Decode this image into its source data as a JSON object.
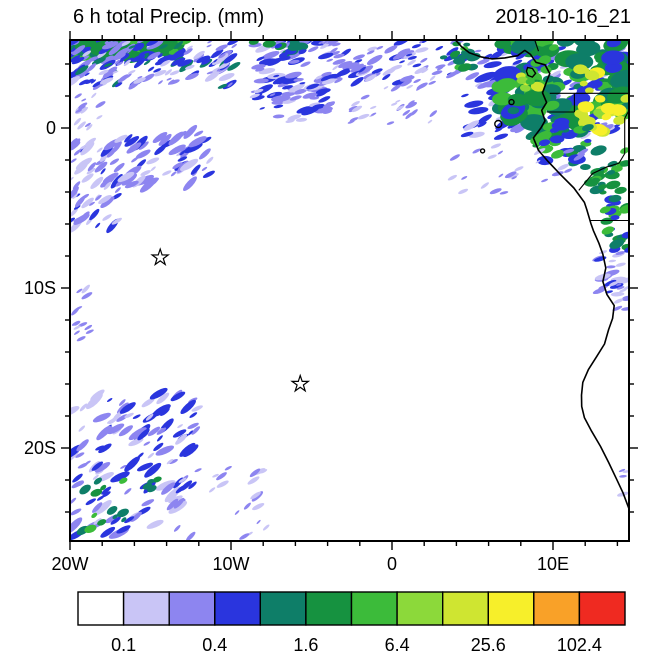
{
  "title": "6 h total Precip. (mm)",
  "datetime": "2018-10-16_21",
  "chart_data": {
    "type": "heatmap",
    "title": "6 h total Precip. (mm)",
    "timestamp": "2018-10-16_21",
    "units": "mm",
    "projection": "lat-lon",
    "lon_range": [
      -20,
      14.72
    ],
    "lat_range": [
      -25.81,
      5.5
    ],
    "x_ticks": [
      {
        "value": -20,
        "label": "20W"
      },
      {
        "value": -10,
        "label": "10W"
      },
      {
        "value": 0,
        "label": "0"
      },
      {
        "value": 10,
        "label": "10E"
      }
    ],
    "y_ticks": [
      {
        "value": 0,
        "label": "0"
      },
      {
        "value": -10,
        "label": "10S"
      },
      {
        "value": -20,
        "label": "20S"
      }
    ],
    "minor_tick_step_deg": 2,
    "colorbar": {
      "levels": [
        0.1,
        0.2,
        0.4,
        0.8,
        1.6,
        3.2,
        6.4,
        12.8,
        25.6,
        51.2,
        102.4
      ],
      "colors": [
        "#FFFFFF",
        "#C9C5F6",
        "#8D85F0",
        "#2A35DE",
        "#0E7E68",
        "#169240",
        "#3CBB3A",
        "#8CD93A",
        "#CFE531",
        "#F7EF2A",
        "#F9A128",
        "#EF2A21"
      ],
      "labeled_values": [
        "0.1",
        "0.4",
        "1.6",
        "6.4",
        "25.6",
        "102.4"
      ],
      "labeled_boundary_indices": [
        1,
        3,
        5,
        7,
        9,
        11
      ]
    },
    "markers": [
      {
        "shape": "star",
        "lon": -14.4,
        "lat": -8.1
      },
      {
        "shape": "star",
        "lon": -5.7,
        "lat": -16.0
      }
    ],
    "precip_regions": [
      {
        "name": "topleft-green-band",
        "lon": [
          -20,
          -12.3
        ],
        "lat": [
          4.5,
          5.5
        ],
        "n": 55,
        "r": [
          2.5,
          7
        ],
        "colors": [
          4,
          5,
          6,
          5,
          3
        ],
        "angle": -15,
        "seed": 11,
        "aspect": [
          1.8,
          1.0
        ]
      },
      {
        "name": "topleft-blue-speckle",
        "lon": [
          -20,
          -9.8
        ],
        "lat": [
          2.6,
          5.5
        ],
        "n": 150,
        "r": [
          1.2,
          4.2
        ],
        "colors": [
          1,
          2,
          3,
          2,
          3,
          4
        ],
        "angle": -30,
        "seed": 12
      },
      {
        "name": "left-edge-streaks-upper",
        "lon": [
          -20,
          -17
        ],
        "lat": [
          -6.3,
          -0.8
        ],
        "n": 60,
        "r": [
          1.3,
          4.5
        ],
        "colors": [
          1,
          2,
          3,
          2
        ],
        "angle": -40,
        "seed": 13
      },
      {
        "name": "left-edge-sparse",
        "lon": [
          -20,
          -18
        ],
        "lat": [
          0,
          2.6
        ],
        "n": 16,
        "r": [
          1.2,
          3
        ],
        "colors": [
          1,
          2
        ],
        "angle": -35,
        "seed": 14
      },
      {
        "name": "west-cluster",
        "lon": [
          -17,
          -11
        ],
        "lat": [
          -3.6,
          -0.2
        ],
        "n": 60,
        "r": [
          1.4,
          4.8
        ],
        "colors": [
          2,
          3,
          1,
          2
        ],
        "angle": -35,
        "seed": 15
      },
      {
        "name": "midtop-streaks",
        "lon": [
          -8.6,
          -3.6
        ],
        "lat": [
          0.4,
          5.5
        ],
        "n": 90,
        "r": [
          1.3,
          4.6
        ],
        "colors": [
          2,
          3,
          1,
          2,
          3
        ],
        "angle": -15,
        "seed": 16
      },
      {
        "name": "midtop-teal",
        "lon": [
          -8.8,
          -5.4
        ],
        "lat": [
          4.5,
          5.5
        ],
        "n": 16,
        "r": [
          2,
          4.5
        ],
        "colors": [
          4,
          5,
          3
        ],
        "angle": -10,
        "seed": 17,
        "aspect": [
          1.8,
          1.0
        ]
      },
      {
        "name": "top-center",
        "lon": [
          -4.2,
          1.2
        ],
        "lat": [
          2.8,
          5.5
        ],
        "n": 60,
        "r": [
          1.3,
          4.2
        ],
        "colors": [
          2,
          3,
          1,
          2
        ],
        "angle": -25,
        "seed": 18
      },
      {
        "name": "center-sparse",
        "lon": [
          -2.6,
          0.3
        ],
        "lat": [
          0.3,
          2.8
        ],
        "n": 14,
        "r": [
          1.2,
          3
        ],
        "colors": [
          1,
          2
        ],
        "angle": -30,
        "seed": 19
      },
      {
        "name": "top-east-sparse",
        "lon": [
          1.2,
          4.6
        ],
        "lat": [
          3.2,
          5.5
        ],
        "n": 26,
        "r": [
          1.2,
          3.4
        ],
        "colors": [
          2,
          1,
          3
        ],
        "angle": -25,
        "seed": 20
      },
      {
        "name": "east-sparse-low",
        "lon": [
          0,
          2.8
        ],
        "lat": [
          0.3,
          3.2
        ],
        "n": 18,
        "r": [
          1.2,
          3
        ],
        "colors": [
          1,
          2,
          2
        ],
        "angle": -30,
        "seed": 21
      },
      {
        "name": "ghana-green",
        "lon": [
          3.2,
          5.2
        ],
        "lat": [
          3.6,
          5.5
        ],
        "n": 14,
        "r": [
          1.8,
          4
        ],
        "colors": [
          5,
          6,
          4
        ],
        "angle": -10,
        "seed": 38,
        "aspect": [
          1.8,
          1.0
        ]
      },
      {
        "name": "gulf-blue-base",
        "lon": [
          4.5,
          14.72
        ],
        "lat": [
          -0.6,
          5.5
        ],
        "n": 100,
        "r": [
          1.6,
          5.5
        ],
        "colors": [
          2,
          3,
          1,
          3
        ],
        "angle": -20,
        "seed": 22
      },
      {
        "name": "gulf-greens",
        "lon": [
          6.8,
          14.72
        ],
        "lat": [
          0.2,
          5.5
        ],
        "n": 120,
        "r": [
          2.6,
          8
        ],
        "colors": [
          4,
          5,
          6,
          5,
          6,
          3
        ],
        "angle": -10,
        "seed": 23,
        "aspect": [
          1.8,
          1.1
        ]
      },
      {
        "name": "gulf-yellow-cores",
        "lon": [
          11.6,
          14.72
        ],
        "lat": [
          -0.5,
          3.7
        ],
        "n": 26,
        "r": [
          2,
          5.5
        ],
        "colors": [
          7,
          8,
          9,
          8
        ],
        "angle": 0,
        "seed": 24,
        "aspect": [
          1.6,
          1.1
        ]
      },
      {
        "name": "bioko-yellowgreen",
        "lon": [
          7.8,
          9.7
        ],
        "lat": [
          2.4,
          4.4
        ],
        "n": 10,
        "r": [
          2,
          4.5
        ],
        "colors": [
          7,
          8,
          6
        ],
        "angle": 0,
        "seed": 25,
        "aspect": [
          1.6,
          1.1
        ]
      },
      {
        "name": "gabon-coast-green",
        "lon": [
          8.6,
          12.2
        ],
        "lat": [
          -2.2,
          0.4
        ],
        "n": 34,
        "r": [
          2,
          5
        ],
        "colors": [
          5,
          6,
          4,
          3
        ],
        "angle": -10,
        "seed": 26,
        "aspect": [
          1.8,
          1.0
        ]
      },
      {
        "name": "congo-coast-green",
        "lon": [
          12.0,
          14.72
        ],
        "lat": [
          -4.1,
          -1.3
        ],
        "n": 24,
        "r": [
          2,
          4.8
        ],
        "colors": [
          5,
          6,
          4
        ],
        "angle": -10,
        "seed": 27,
        "aspect": [
          1.8,
          1.0
        ]
      },
      {
        "name": "angola-coast-green",
        "lon": [
          13.2,
          14.72
        ],
        "lat": [
          -7.8,
          -4.4
        ],
        "n": 24,
        "r": [
          1.8,
          4.4
        ],
        "colors": [
          5,
          4,
          6,
          3
        ],
        "angle": -10,
        "seed": 28,
        "aspect": [
          1.8,
          1.0
        ]
      },
      {
        "name": "angola-coast-blue",
        "lon": [
          12.7,
          14.72
        ],
        "lat": [
          -10.4,
          -7.4
        ],
        "n": 24,
        "r": [
          1.6,
          4
        ],
        "colors": [
          2,
          3,
          1
        ],
        "angle": -15,
        "seed": 29
      },
      {
        "name": "right-edge-specks",
        "lon": [
          13.8,
          14.72
        ],
        "lat": [
          -12.6,
          -9.6
        ],
        "n": 8,
        "r": [
          1.2,
          2.6
        ],
        "colors": [
          1,
          2
        ],
        "angle": -15,
        "seed": 30
      },
      {
        "name": "offshore-specks",
        "lon": [
          3.5,
          12
        ],
        "lat": [
          -4.2,
          -0.9
        ],
        "n": 26,
        "r": [
          1.2,
          3
        ],
        "colors": [
          1,
          2
        ],
        "angle": -25,
        "seed": 31
      },
      {
        "name": "left-edge-mid-specks",
        "lon": [
          -20,
          -18.5
        ],
        "lat": [
          -13.2,
          -9.4
        ],
        "n": 13,
        "r": [
          1.2,
          3
        ],
        "colors": [
          1,
          2
        ],
        "angle": -35,
        "seed": 32
      },
      {
        "name": "southwest-cluster",
        "lon": [
          -20,
          -12
        ],
        "lat": [
          -25.6,
          -16.6
        ],
        "n": 130,
        "r": [
          1.4,
          5
        ],
        "colors": [
          1,
          2,
          3,
          2,
          1,
          3
        ],
        "angle": -35,
        "seed": 33
      },
      {
        "name": "southwest-greens",
        "lon": [
          -20,
          -16.6
        ],
        "lat": [
          -25.6,
          -21.8
        ],
        "n": 13,
        "r": [
          1.8,
          4
        ],
        "colors": [
          4,
          5,
          6
        ],
        "angle": -30,
        "seed": 34,
        "aspect": [
          1.7,
          1.0
        ]
      },
      {
        "name": "south-green-spot",
        "lon": [
          -15.2,
          -14.2
        ],
        "lat": [
          -23,
          -21.8
        ],
        "n": 4,
        "r": [
          1.8,
          3.4
        ],
        "colors": [
          5,
          4
        ],
        "angle": -20,
        "seed": 35,
        "aspect": [
          1.7,
          1.0
        ]
      },
      {
        "name": "south-center-specks",
        "lon": [
          -11.6,
          -7.8
        ],
        "lat": [
          -25.6,
          -21.2
        ],
        "n": 18,
        "r": [
          1.2,
          3.4
        ],
        "colors": [
          1,
          2,
          2
        ],
        "angle": -35,
        "seed": 36
      },
      {
        "name": "se-coast-lavender",
        "lon": [
          13.9,
          14.65
        ],
        "lat": [
          -23.2,
          -21.4
        ],
        "n": 4,
        "r": [
          1.5,
          2.8
        ],
        "colors": [
          1,
          1,
          2
        ],
        "angle": -15,
        "seed": 37
      }
    ]
  },
  "map": {
    "coastline": [
      [
        3.9,
        5.55
      ],
      [
        4.3,
        5.1
      ],
      [
        4.8,
        4.7
      ],
      [
        5.5,
        4.45
      ],
      [
        6.2,
        4.32
      ],
      [
        7.0,
        4.38
      ],
      [
        7.8,
        4.52
      ],
      [
        8.25,
        4.85
      ],
      [
        8.6,
        4.6
      ],
      [
        8.95,
        4.1
      ],
      [
        9.5,
        3.95
      ],
      [
        9.8,
        3.4
      ],
      [
        9.6,
        2.9
      ],
      [
        9.35,
        2.2
      ],
      [
        9.6,
        1.6
      ],
      [
        9.3,
        1.1
      ],
      [
        9.5,
        0.45
      ],
      [
        9.25,
        0.0
      ],
      [
        8.78,
        -0.62
      ],
      [
        9.1,
        -1.4
      ],
      [
        9.7,
        -2.1
      ],
      [
        10.5,
        -2.95
      ],
      [
        11.3,
        -3.75
      ],
      [
        11.95,
        -4.65
      ],
      [
        12.1,
        -5.1
      ],
      [
        12.35,
        -5.95
      ],
      [
        12.5,
        -6.4
      ],
      [
        12.85,
        -7.2
      ],
      [
        13.1,
        -7.9
      ],
      [
        13.28,
        -8.75
      ],
      [
        13.1,
        -9.6
      ],
      [
        13.35,
        -10.4
      ],
      [
        13.8,
        -11.1
      ],
      [
        13.7,
        -11.9
      ],
      [
        13.45,
        -12.6
      ],
      [
        13.2,
        -13.5
      ],
      [
        12.7,
        -14.3
      ],
      [
        12.2,
        -15.1
      ],
      [
        11.85,
        -15.9
      ],
      [
        11.77,
        -16.7
      ],
      [
        11.78,
        -17.4
      ],
      [
        11.95,
        -18.1
      ],
      [
        12.4,
        -18.95
      ],
      [
        12.95,
        -19.9
      ],
      [
        13.45,
        -20.9
      ],
      [
        13.95,
        -21.95
      ],
      [
        14.35,
        -22.8
      ],
      [
        14.72,
        -23.8
      ]
    ],
    "borders": [
      [
        [
          9.8,
          2.17
        ],
        [
          14.72,
          2.17
        ]
      ],
      [
        [
          11.33,
          2.17
        ],
        [
          11.33,
          1.0
        ]
      ],
      [
        [
          9.6,
          1.0
        ],
        [
          11.33,
          1.0
        ]
      ],
      [
        [
          11.6,
          -3.9
        ],
        [
          12.45,
          -2.85
        ],
        [
          13.3,
          -2.45
        ],
        [
          14.1,
          -2.2
        ],
        [
          14.45,
          -1.6
        ],
        [
          14.45,
          0.6
        ],
        [
          14.72,
          1.1
        ]
      ],
      [
        [
          12.3,
          -5.78
        ],
        [
          14.72,
          -5.78
        ]
      ],
      [
        [
          8.85,
          5.55
        ],
        [
          9.1,
          4.8
        ]
      ]
    ],
    "islands": {
      "bioko": [
        [
          8.42,
          3.78
        ],
        [
          8.72,
          3.72
        ],
        [
          8.92,
          3.42
        ],
        [
          8.72,
          3.18
        ],
        [
          8.45,
          3.28
        ],
        [
          8.35,
          3.55
        ]
      ],
      "small": [
        [
          7.42,
          1.62,
          2.5
        ],
        [
          6.6,
          0.25,
          3.5
        ],
        [
          5.63,
          -1.43,
          2
        ]
      ]
    }
  }
}
